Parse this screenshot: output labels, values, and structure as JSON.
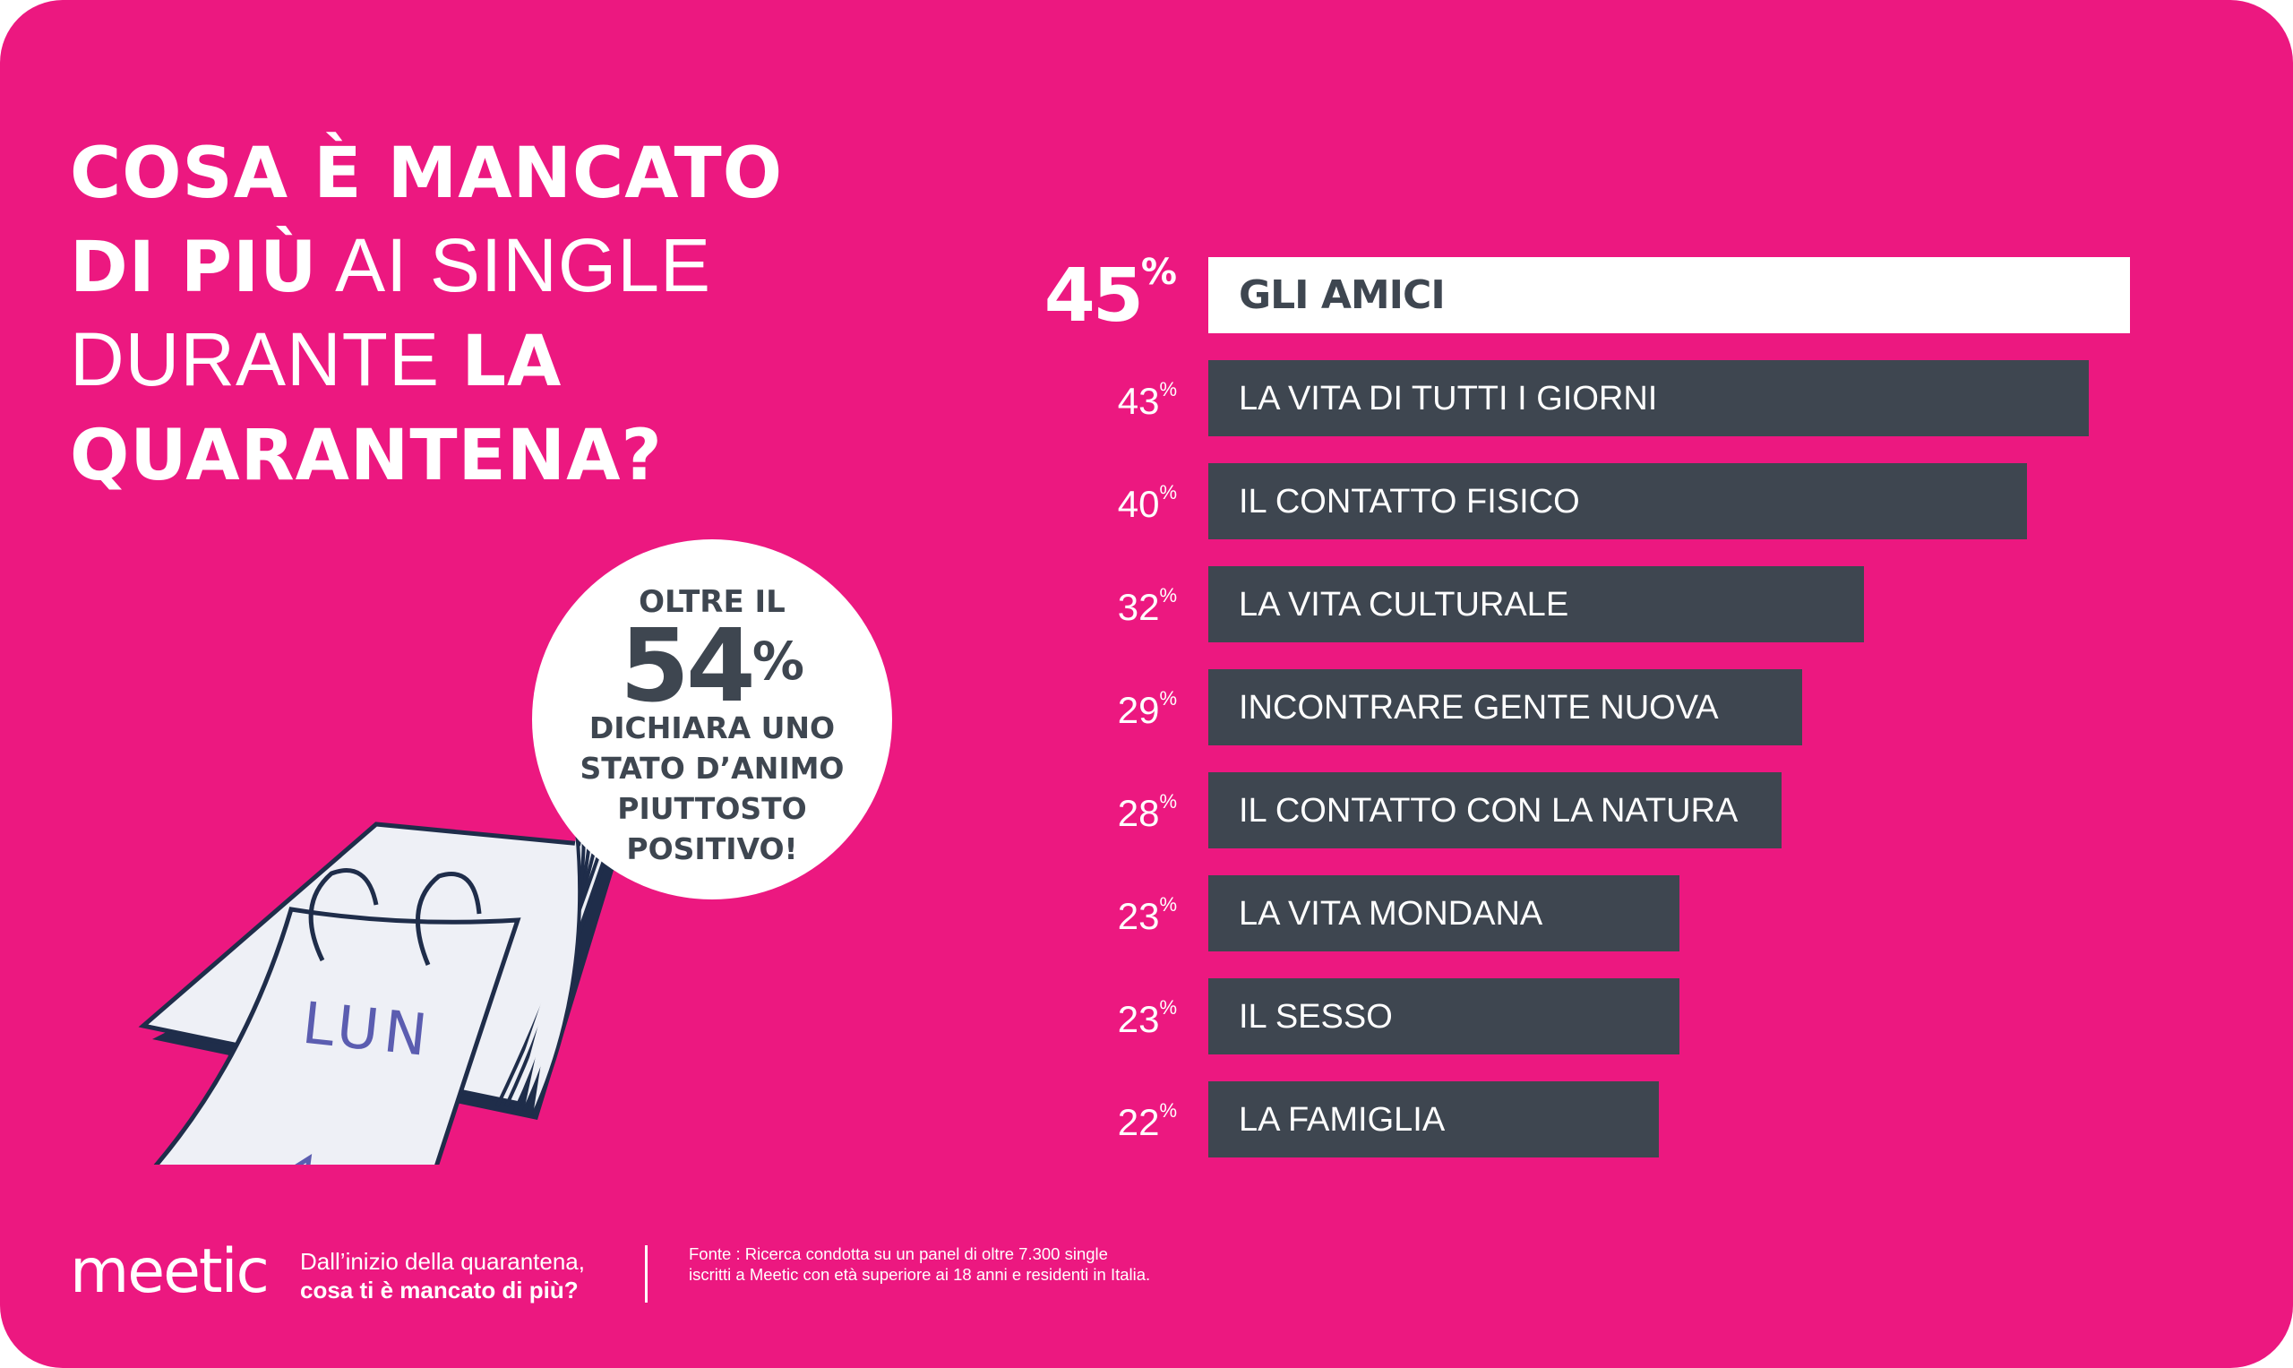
{
  "title": {
    "line1_bold": "COSA È MANCATO",
    "line2_bold": "DI PIÙ",
    "line2_regular": "AI SINGLE",
    "line3_regular": "DURANTE",
    "line3_bold": "LA",
    "line4_bold": "QUARANTENA?"
  },
  "callout": {
    "top": "OLTRE IL",
    "value": "54",
    "unit": "%",
    "text_lines": [
      "DICHIARA UNO",
      "STATO D’ANIMO",
      "PIUTTOSTO",
      "POSITIVO!"
    ]
  },
  "illustration": {
    "calendar_text": "LUN",
    "icon": "heart-icon"
  },
  "colors": {
    "background": "#EC1880",
    "bar": "#3E4650",
    "highlight_bar": "#FFFFFF",
    "heart": "#E8247A",
    "handwriting": "#5B5DB0"
  },
  "chart_data": {
    "type": "bar",
    "orientation": "horizontal",
    "unit": "%",
    "categories": [
      "GLI AMICI",
      "LA VITA DI TUTTI I GIORNI",
      "IL CONTATTO FISICO",
      "LA VITA CULTURALE",
      "INCONTRARE GENTE NUOVA",
      "IL CONTATTO CON LA NATURA",
      "LA VITA MONDANA",
      "IL SESSO",
      "LA FAMIGLIA"
    ],
    "values": [
      45,
      43,
      40,
      32,
      29,
      28,
      23,
      23,
      22
    ],
    "highlighted": "GLI AMICI",
    "grid": false
  },
  "footer": {
    "logo": "meetic",
    "question_line1": "Dall’inizio della quarantena,",
    "question_line2": "cosa ti è mancato di più?",
    "source": "Fonte : Ricerca condotta su un panel di oltre 7.300 single iscritti a Meetic con età superiore ai 18 anni e residenti in Italia."
  }
}
